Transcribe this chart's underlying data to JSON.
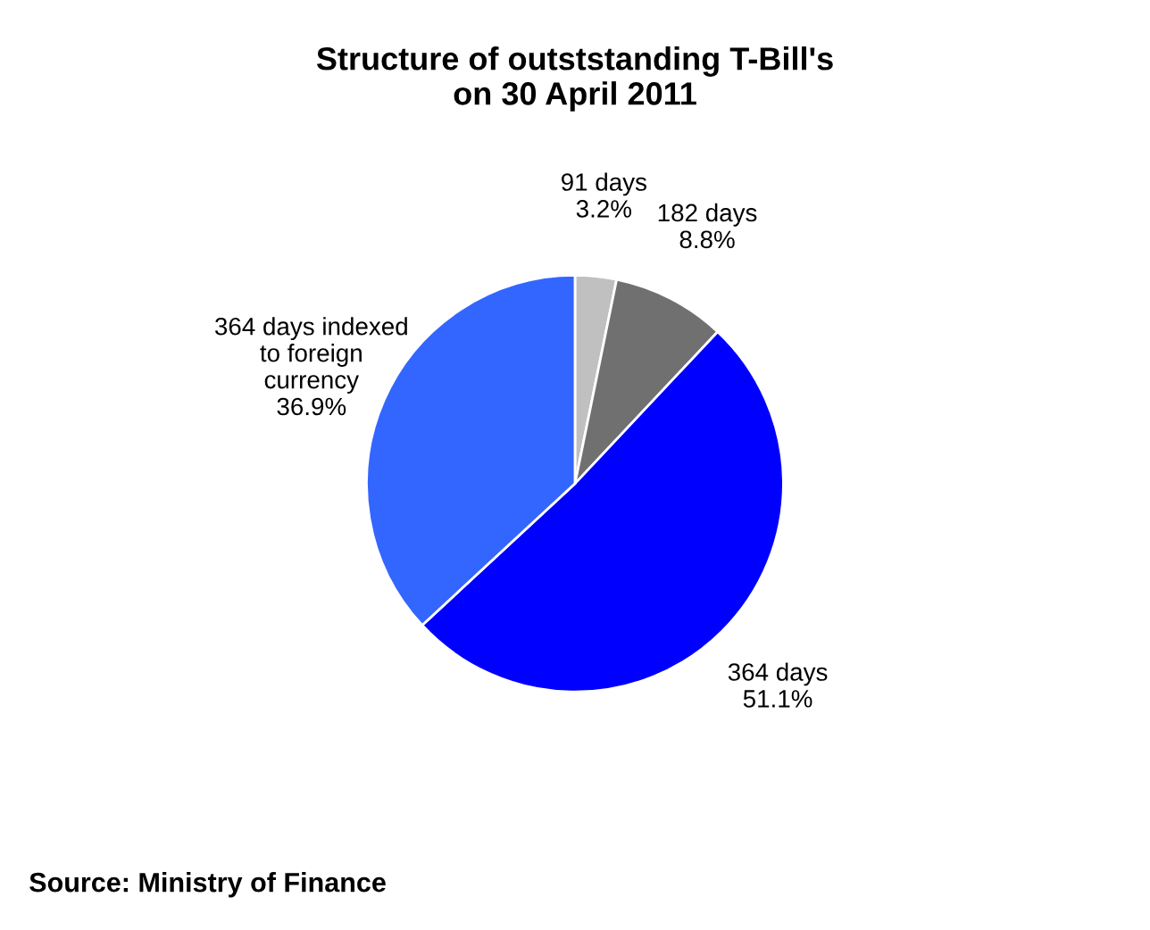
{
  "chart_data": {
    "type": "pie",
    "title": "Structure of outststanding T-Bill's\non 30 April 2011",
    "categories": [
      "91 days",
      "182 days",
      "364 days",
      "364 days indexed\nto foreign\ncurrency"
    ],
    "values": [
      3.2,
      8.8,
      51.1,
      36.9
    ],
    "colors": [
      "#c0c0c0",
      "#707070",
      "#0000ff",
      "#3366ff"
    ],
    "value_labels": [
      "3.2%",
      "8.8%",
      "51.1%",
      "36.9%"
    ],
    "annotations": [
      "Source: Ministry of Finance"
    ],
    "legend": false
  }
}
